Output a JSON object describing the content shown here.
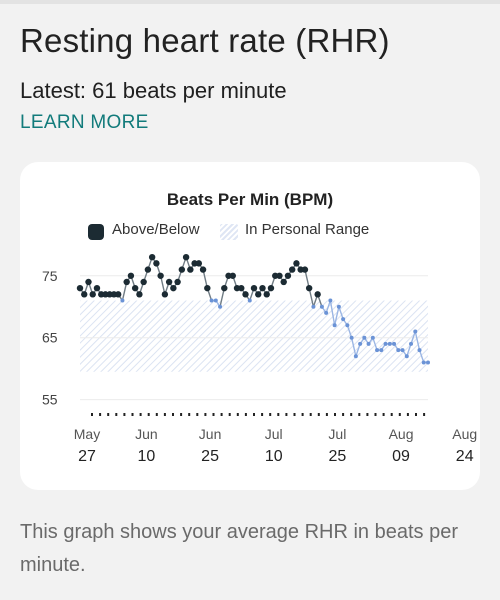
{
  "header": {
    "title": "Resting heart rate (RHR)",
    "latest": "Latest: 61 beats per minute",
    "learn_more": "LEARN MORE"
  },
  "legend": {
    "above_below": "Above/Below",
    "in_range": "In Personal Range"
  },
  "footer_text": "This graph shows your average RHR in beats per minute.",
  "colors": {
    "dark_dot": "#1c2b33",
    "in_range_dot": "#6b93d6",
    "link": "#127b7b"
  },
  "chart_data": {
    "type": "line",
    "title": "Beats Per Min (BPM)",
    "ylim": [
      53,
      79
    ],
    "yticks": [
      75,
      65,
      55
    ],
    "personal_range": [
      59.5,
      71
    ],
    "x_ticks": [
      {
        "day": 0,
        "month": "May",
        "date": "27"
      },
      {
        "day": 14,
        "month": "Jun",
        "date": "10"
      },
      {
        "day": 29,
        "month": "Jun",
        "date": "25"
      },
      {
        "day": 44,
        "month": "Jul",
        "date": "10"
      },
      {
        "day": 59,
        "month": "Jul",
        "date": "25"
      },
      {
        "day": 74,
        "month": "Aug",
        "date": "09"
      },
      {
        "day": 89,
        "month": "Aug",
        "date": "24"
      }
    ],
    "values": [
      73,
      72,
      74,
      72,
      73,
      72,
      72,
      72,
      72,
      72,
      71,
      74,
      75,
      73,
      72,
      74,
      76,
      78,
      77,
      75,
      72,
      74,
      73,
      74,
      76,
      78,
      76,
      77,
      77,
      76,
      73,
      71,
      71,
      70,
      73,
      75,
      75,
      73,
      73,
      72,
      71,
      73,
      72,
      73,
      72,
      73,
      75,
      75,
      74,
      75,
      76,
      77,
      76,
      76,
      73,
      70,
      72,
      70,
      69,
      71,
      67,
      70,
      68,
      67,
      65,
      62,
      64,
      65,
      64,
      65,
      63,
      63,
      64,
      64,
      64,
      63,
      63,
      62,
      64,
      66,
      63,
      61,
      61
    ]
  }
}
